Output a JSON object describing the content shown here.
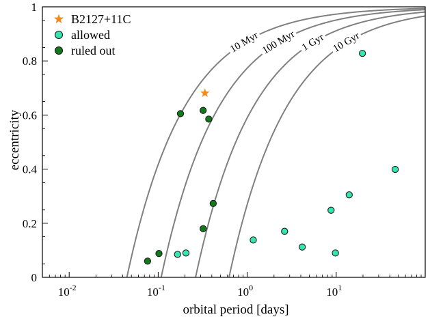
{
  "chart_data": {
    "type": "scatter",
    "xlabel": "orbital period [days]",
    "ylabel": "eccentricity",
    "xscale": "log",
    "xlim": [
      0.005,
      100
    ],
    "ylim": [
      0,
      1
    ],
    "x_ticks": [
      {
        "value": 0.01,
        "base": "10",
        "exp": "-2"
      },
      {
        "value": 0.1,
        "base": "10",
        "exp": "-1"
      },
      {
        "value": 1,
        "base": "10",
        "exp": "0"
      },
      {
        "value": 10,
        "base": "10",
        "exp": "1"
      }
    ],
    "y_ticks": [
      {
        "value": 0,
        "label": "0"
      },
      {
        "value": 0.2,
        "label": "0.2"
      },
      {
        "value": 0.4,
        "label": "0.4"
      },
      {
        "value": 0.6,
        "label": "0.6"
      },
      {
        "value": 0.8,
        "label": "0.8"
      },
      {
        "value": 1,
        "label": "1"
      }
    ],
    "legend_position": "top-left",
    "series": [
      {
        "name": "B2127+11C",
        "marker": "star",
        "color": "#f28a1e",
        "points": [
          {
            "x": 0.335,
            "y": 0.681
          }
        ]
      },
      {
        "name": "allowed",
        "marker": "circle",
        "color": "#35e6b0",
        "points": [
          {
            "x": 0.165,
            "y": 0.085
          },
          {
            "x": 0.205,
            "y": 0.09
          },
          {
            "x": 1.17,
            "y": 0.138
          },
          {
            "x": 2.63,
            "y": 0.17
          },
          {
            "x": 4.15,
            "y": 0.112
          },
          {
            "x": 8.75,
            "y": 0.248
          },
          {
            "x": 9.8,
            "y": 0.09
          },
          {
            "x": 14.0,
            "y": 0.305
          },
          {
            "x": 19.7,
            "y": 0.828
          },
          {
            "x": 46.0,
            "y": 0.399
          }
        ]
      },
      {
        "name": "ruled out",
        "marker": "circle",
        "color": "#127a1c",
        "points": [
          {
            "x": 0.076,
            "y": 0.06
          },
          {
            "x": 0.102,
            "y": 0.088
          },
          {
            "x": 0.178,
            "y": 0.605
          },
          {
            "x": 0.32,
            "y": 0.617
          },
          {
            "x": 0.32,
            "y": 0.18
          },
          {
            "x": 0.37,
            "y": 0.585
          },
          {
            "x": 0.415,
            "y": 0.273
          }
        ]
      }
    ],
    "curves": [
      {
        "label": "10 Myr",
        "p_circ": 0.0445
      },
      {
        "label": "100 Myr",
        "p_circ": 0.108
      },
      {
        "label": "1 Gyr",
        "p_circ": 0.263
      },
      {
        "label": "10 Gyr",
        "p_circ": 0.625
      }
    ],
    "colors": {
      "curve": "#808080",
      "marker_edge": "#1a1a1a",
      "axis": "#000000"
    }
  }
}
